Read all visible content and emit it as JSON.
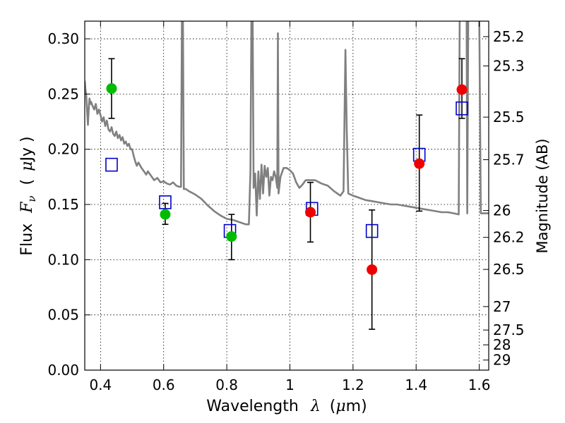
{
  "chart_data": {
    "type": "scatter",
    "xlabel_text": "Wavelength",
    "xlabel_symbol": "λ",
    "xlabel_unit_open": "(",
    "xlabel_unit_mu": "μ",
    "xlabel_unit_rest": "m)",
    "ylabel_text": "Flux",
    "ylabel_symbol": "F",
    "ylabel_sub": "ν",
    "ylabel_unit_open": "(",
    "ylabel_unit_mu": "μ",
    "ylabel_unit_rest": "Jy )",
    "y2label": "Magnitude (AB)",
    "xlim": [
      0.35,
      1.63
    ],
    "ylim": [
      0.0,
      0.316
    ],
    "grid": true,
    "x_ticks": [
      0.4,
      0.6,
      0.8,
      1.0,
      1.2,
      1.4,
      1.6
    ],
    "x_tick_labels": [
      "0.4",
      "0.6",
      "0.8",
      "1",
      "1.2",
      "1.4",
      "1.6"
    ],
    "y_ticks": [
      0.0,
      0.05,
      0.1,
      0.15,
      0.2,
      0.25,
      0.3
    ],
    "y_tick_labels": [
      "0.00",
      "0.05",
      "0.10",
      "0.15",
      "0.20",
      "0.25",
      "0.30"
    ],
    "y2_ticks": [
      25.2,
      25.3,
      25.5,
      25.7,
      26,
      26.2,
      26.5,
      27,
      27.5,
      28,
      29
    ],
    "y2_tick_labels": [
      "25.2",
      "25.3",
      "25.5",
      "25.7",
      "26",
      "26.2",
      "26.5",
      "27",
      "27.5",
      "28",
      "29"
    ],
    "colors": {
      "model": "#808080",
      "green": "#00bb00",
      "red": "#ee0000",
      "box": "#0000cc",
      "error": "#000000"
    },
    "model_spectrum": [
      [
        0.35,
        0.262
      ],
      [
        0.352,
        0.255
      ],
      [
        0.355,
        0.248
      ],
      [
        0.358,
        0.232
      ],
      [
        0.36,
        0.222
      ],
      [
        0.362,
        0.234
      ],
      [
        0.365,
        0.246
      ],
      [
        0.368,
        0.241
      ],
      [
        0.37,
        0.243
      ],
      [
        0.375,
        0.239
      ],
      [
        0.38,
        0.236
      ],
      [
        0.385,
        0.241
      ],
      [
        0.39,
        0.232
      ],
      [
        0.395,
        0.236
      ],
      [
        0.4,
        0.231
      ],
      [
        0.405,
        0.225
      ],
      [
        0.41,
        0.229
      ],
      [
        0.415,
        0.221
      ],
      [
        0.42,
        0.226
      ],
      [
        0.425,
        0.218
      ],
      [
        0.43,
        0.216
      ],
      [
        0.435,
        0.22
      ],
      [
        0.44,
        0.214
      ],
      [
        0.445,
        0.212
      ],
      [
        0.45,
        0.216
      ],
      [
        0.455,
        0.21
      ],
      [
        0.46,
        0.213
      ],
      [
        0.465,
        0.208
      ],
      [
        0.47,
        0.211
      ],
      [
        0.475,
        0.205
      ],
      [
        0.48,
        0.207
      ],
      [
        0.485,
        0.203
      ],
      [
        0.49,
        0.205
      ],
      [
        0.495,
        0.2
      ],
      [
        0.5,
        0.2
      ],
      [
        0.505,
        0.194
      ],
      [
        0.51,
        0.189
      ],
      [
        0.515,
        0.185
      ],
      [
        0.52,
        0.188
      ],
      [
        0.53,
        0.183
      ],
      [
        0.54,
        0.179
      ],
      [
        0.545,
        0.177
      ],
      [
        0.55,
        0.18
      ],
      [
        0.56,
        0.176
      ],
      [
        0.57,
        0.172
      ],
      [
        0.58,
        0.174
      ],
      [
        0.59,
        0.17
      ],
      [
        0.6,
        0.171
      ],
      [
        0.61,
        0.169
      ],
      [
        0.62,
        0.168
      ],
      [
        0.63,
        0.17
      ],
      [
        0.64,
        0.167
      ],
      [
        0.65,
        0.166
      ],
      [
        0.655,
        0.166
      ],
      [
        0.658,
        0.32
      ],
      [
        0.661,
        0.32
      ],
      [
        0.664,
        0.164
      ],
      [
        0.67,
        0.164
      ],
      [
        0.68,
        0.162
      ],
      [
        0.7,
        0.159
      ],
      [
        0.72,
        0.155
      ],
      [
        0.74,
        0.149
      ],
      [
        0.76,
        0.144
      ],
      [
        0.78,
        0.14
      ],
      [
        0.8,
        0.137
      ],
      [
        0.82,
        0.136
      ],
      [
        0.84,
        0.134
      ],
      [
        0.86,
        0.132
      ],
      [
        0.87,
        0.132
      ],
      [
        0.875,
        0.18
      ],
      [
        0.878,
        0.32
      ],
      [
        0.882,
        0.32
      ],
      [
        0.885,
        0.165
      ],
      [
        0.89,
        0.178
      ],
      [
        0.895,
        0.14
      ],
      [
        0.9,
        0.18
      ],
      [
        0.905,
        0.155
      ],
      [
        0.91,
        0.186
      ],
      [
        0.915,
        0.16
      ],
      [
        0.92,
        0.185
      ],
      [
        0.925,
        0.175
      ],
      [
        0.93,
        0.183
      ],
      [
        0.935,
        0.158
      ],
      [
        0.94,
        0.175
      ],
      [
        0.945,
        0.172
      ],
      [
        0.95,
        0.18
      ],
      [
        0.955,
        0.175
      ],
      [
        0.96,
        0.165
      ],
      [
        0.962,
        0.305
      ],
      [
        0.964,
        0.16
      ],
      [
        0.97,
        0.175
      ],
      [
        0.98,
        0.183
      ],
      [
        0.99,
        0.183
      ],
      [
        1.0,
        0.181
      ],
      [
        1.01,
        0.178
      ],
      [
        1.02,
        0.17
      ],
      [
        1.03,
        0.165
      ],
      [
        1.04,
        0.168
      ],
      [
        1.05,
        0.172
      ],
      [
        1.06,
        0.172
      ],
      [
        1.08,
        0.172
      ],
      [
        1.1,
        0.169
      ],
      [
        1.12,
        0.167
      ],
      [
        1.14,
        0.162
      ],
      [
        1.16,
        0.158
      ],
      [
        1.17,
        0.162
      ],
      [
        1.176,
        0.29
      ],
      [
        1.18,
        0.22
      ],
      [
        1.185,
        0.16
      ],
      [
        1.2,
        0.158
      ],
      [
        1.22,
        0.156
      ],
      [
        1.24,
        0.154
      ],
      [
        1.26,
        0.153
      ],
      [
        1.28,
        0.152
      ],
      [
        1.3,
        0.151
      ],
      [
        1.32,
        0.15
      ],
      [
        1.34,
        0.15
      ],
      [
        1.36,
        0.149
      ],
      [
        1.38,
        0.148
      ],
      [
        1.4,
        0.147
      ],
      [
        1.42,
        0.146
      ],
      [
        1.44,
        0.145
      ],
      [
        1.46,
        0.144
      ],
      [
        1.48,
        0.143
      ],
      [
        1.5,
        0.143
      ],
      [
        1.52,
        0.142
      ],
      [
        1.535,
        0.141
      ],
      [
        1.538,
        0.32
      ],
      [
        1.543,
        0.32
      ],
      [
        1.548,
        0.32
      ],
      [
        1.555,
        0.32
      ],
      [
        1.56,
        0.32
      ],
      [
        1.562,
        0.142
      ],
      [
        1.565,
        0.32
      ],
      [
        1.572,
        0.32
      ],
      [
        1.58,
        0.32
      ],
      [
        1.59,
        0.32
      ],
      [
        1.6,
        0.32
      ],
      [
        1.605,
        0.142
      ],
      [
        1.63,
        0.142
      ]
    ],
    "boxes": [
      {
        "x": 0.435,
        "y": 0.186
      },
      {
        "x": 0.605,
        "y": 0.152
      },
      {
        "x": 0.81,
        "y": 0.126
      },
      {
        "x": 1.07,
        "y": 0.146
      },
      {
        "x": 1.26,
        "y": 0.126
      },
      {
        "x": 1.41,
        "y": 0.195
      },
      {
        "x": 1.545,
        "y": 0.237
      }
    ],
    "green_points": [
      {
        "x": 0.435,
        "y": 0.255,
        "err": [
          0.228,
          0.282
        ]
      },
      {
        "x": 0.605,
        "y": 0.141,
        "err": [
          0.132,
          0.151
        ]
      },
      {
        "x": 0.815,
        "y": 0.121,
        "err": [
          0.1,
          0.141
        ]
      }
    ],
    "red_points": [
      {
        "x": 1.065,
        "y": 0.143,
        "err": [
          0.116,
          0.17
        ]
      },
      {
        "x": 1.26,
        "y": 0.091,
        "err": [
          0.037,
          0.145
        ]
      },
      {
        "x": 1.41,
        "y": 0.187,
        "err": [
          0.144,
          0.231
        ]
      },
      {
        "x": 1.545,
        "y": 0.254,
        "err": [
          0.228,
          0.282
        ]
      }
    ]
  }
}
